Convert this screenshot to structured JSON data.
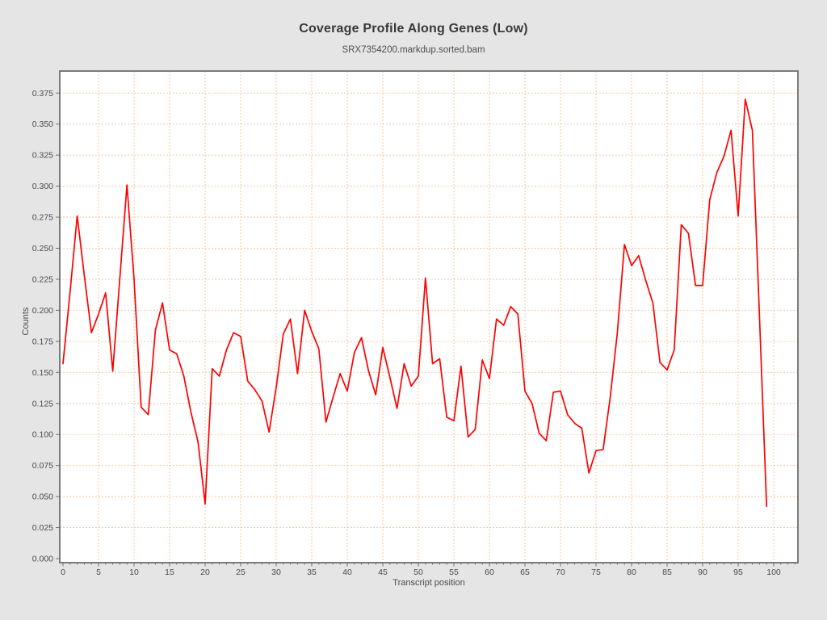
{
  "chart_data": {
    "type": "line",
    "title": "Coverage Profile Along Genes (Low)",
    "subtitle": "SRX7354200.markdup.sorted.bam",
    "xlabel": "Transcript position",
    "ylabel": "Counts",
    "xlim": [
      0,
      100
    ],
    "ylim": [
      0.0,
      0.375
    ],
    "x_ticks": [
      0,
      5,
      10,
      15,
      20,
      25,
      30,
      35,
      40,
      45,
      50,
      55,
      60,
      65,
      70,
      75,
      80,
      85,
      90,
      95,
      100
    ],
    "y_ticks": [
      0.0,
      0.025,
      0.05,
      0.075,
      0.1,
      0.125,
      0.15,
      0.175,
      0.2,
      0.225,
      0.25,
      0.275,
      0.3,
      0.325,
      0.35,
      0.375
    ],
    "grid": true,
    "legend": null,
    "colors": {
      "line": "#ff0000",
      "grid": "#f6c9a2",
      "plot_border": "#6e6e6e",
      "tick_text": "#4a4a4a",
      "background": "#e5e5e5",
      "plot_background": "#ffffff"
    },
    "series": [
      {
        "name": "coverage",
        "color": "#ff0000",
        "x": [
          0,
          1,
          2,
          3,
          4,
          5,
          6,
          7,
          8,
          9,
          10,
          11,
          12,
          13,
          14,
          15,
          16,
          17,
          18,
          19,
          20,
          21,
          22,
          23,
          24,
          25,
          26,
          27,
          28,
          29,
          30,
          31,
          32,
          33,
          34,
          35,
          36,
          37,
          38,
          39,
          40,
          41,
          42,
          43,
          44,
          45,
          46,
          47,
          48,
          49,
          50,
          51,
          52,
          53,
          54,
          55,
          56,
          57,
          58,
          59,
          60,
          61,
          62,
          63,
          64,
          65,
          66,
          67,
          68,
          69,
          70,
          71,
          72,
          73,
          74,
          75,
          76,
          77,
          78,
          79,
          80,
          81,
          82,
          83,
          84,
          85,
          86,
          87,
          88,
          89,
          90,
          91,
          92,
          93,
          94,
          95,
          96,
          97,
          98,
          99
        ],
        "values": [
          0.157,
          0.215,
          0.276,
          0.228,
          0.182,
          0.197,
          0.214,
          0.151,
          0.226,
          0.301,
          0.225,
          0.122,
          0.116,
          0.184,
          0.206,
          0.168,
          0.165,
          0.147,
          0.118,
          0.094,
          0.044,
          0.153,
          0.147,
          0.168,
          0.182,
          0.179,
          0.143,
          0.136,
          0.127,
          0.102,
          0.138,
          0.181,
          0.193,
          0.149,
          0.2,
          0.183,
          0.169,
          0.11,
          0.13,
          0.149,
          0.135,
          0.166,
          0.178,
          0.151,
          0.132,
          0.17,
          0.146,
          0.121,
          0.157,
          0.139,
          0.147,
          0.226,
          0.157,
          0.161,
          0.114,
          0.111,
          0.155,
          0.098,
          0.104,
          0.16,
          0.145,
          0.193,
          0.188,
          0.203,
          0.197,
          0.135,
          0.125,
          0.101,
          0.095,
          0.134,
          0.135,
          0.116,
          0.109,
          0.105,
          0.069,
          0.087,
          0.088,
          0.13,
          0.182,
          0.253,
          0.236,
          0.244,
          0.224,
          0.206,
          0.158,
          0.152,
          0.168,
          0.269,
          0.262,
          0.22,
          0.22,
          0.289,
          0.311,
          0.324,
          0.345,
          0.276,
          0.37,
          0.345,
          0.195,
          0.042
        ]
      }
    ]
  }
}
